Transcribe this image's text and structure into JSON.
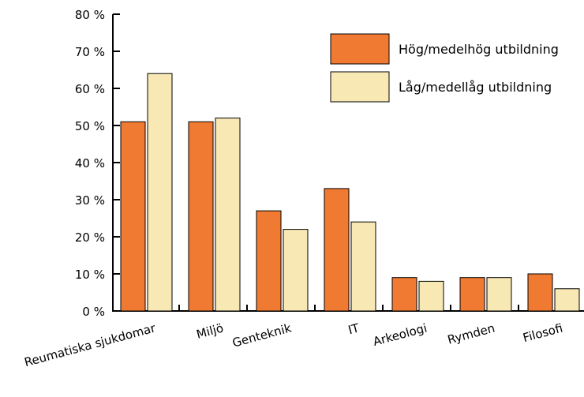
{
  "chart_data": {
    "type": "bar",
    "categories": [
      "Reumatiska sjukdomar",
      "Miljö",
      "Genteknik",
      "IT",
      "Arkeologi",
      "Rymden",
      "Filosofi"
    ],
    "series": [
      {
        "name": "Hög/medelhög utbildning",
        "color": "#F07A32",
        "values": [
          51,
          51,
          27,
          33,
          9,
          9,
          10
        ]
      },
      {
        "name": "Låg/medellåg utbildning",
        "color": "#F8E8B4",
        "values": [
          64,
          52,
          22,
          24,
          8,
          9,
          6
        ]
      }
    ],
    "y_ticks": [
      "0 %",
      "10 %",
      "20 %",
      "30 %",
      "40 %",
      "50 %",
      "60 %",
      "70 %",
      "80 %"
    ],
    "ylim": [
      0,
      80
    ],
    "ylabel": "",
    "xlabel": "",
    "title": "",
    "legend_position": "top-right",
    "grid": false
  }
}
